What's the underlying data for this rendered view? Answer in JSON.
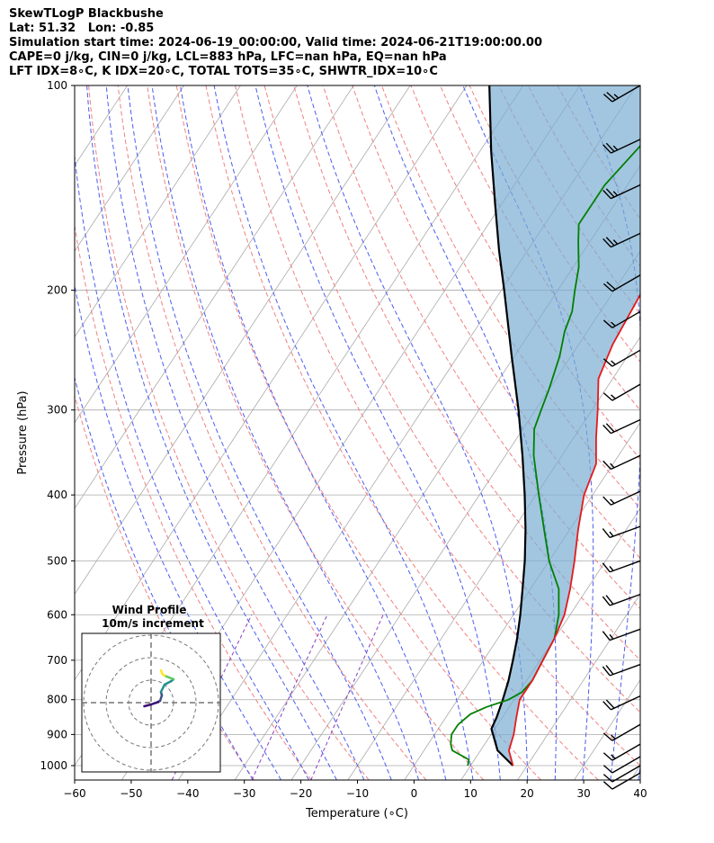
{
  "header": {
    "line1": "SkewTLogP Blackbushe",
    "line2": "Lat: 51.32   Lon: -0.85",
    "line3": "Simulation start time: 2024-06-19_00:00:00, Valid time: 2024-06-21T19:00:00.00",
    "line4": "CAPE=0 j/kg, CIN=0 j/kg, LCL=883 hPa, LFC=nan hPa, EQ=nan hPa",
    "line5": "LFT IDX=8∘C, K IDX=20∘C, TOTAL TOTS=35∘C, SHWTR_IDX=10∘C"
  },
  "colors": {
    "temperature": "#e41a1c",
    "dewpoint": "#008000",
    "parcel": "#000000",
    "shade": "#7aaed3",
    "dry_adiabat": "#f08080",
    "moist_adiabat": "#4a5df0",
    "isotherm": "#aaaaaa",
    "mixing_ratio": "#8a3fc0"
  },
  "chart_data": {
    "type": "line",
    "xlabel": "Temperature (∘C)",
    "ylabel": "Pressure (hPa)",
    "xlim": [
      -60,
      40
    ],
    "ylim": [
      1050,
      100
    ],
    "y_scale": "log",
    "x_ticks": [
      "−60",
      "−50",
      "−40",
      "−30",
      "−20",
      "−10",
      "0",
      "10",
      "20",
      "30",
      "40"
    ],
    "y_ticks": [
      "100",
      "200",
      "300",
      "400",
      "500",
      "600",
      "700",
      "800",
      "900",
      "1000"
    ],
    "y_tick_values": [
      100,
      200,
      300,
      400,
      500,
      600,
      700,
      800,
      900,
      1000
    ],
    "grid": true,
    "series": [
      {
        "kind": "temperature",
        "points": [
          [
            1000,
            17.5
          ],
          [
            950,
            15
          ],
          [
            900,
            14
          ],
          [
            850,
            12.5
          ],
          [
            800,
            11
          ],
          [
            750,
            11
          ],
          [
            700,
            10.5
          ],
          [
            650,
            10
          ],
          [
            600,
            9
          ],
          [
            550,
            7
          ],
          [
            500,
            4.5
          ],
          [
            450,
            1.5
          ],
          [
            400,
            -1.5
          ],
          [
            360,
            -3
          ],
          [
            330,
            -6
          ],
          [
            300,
            -9
          ],
          [
            270,
            -12.5
          ],
          [
            250,
            -13.5
          ],
          [
            240,
            -14
          ],
          [
            200,
            -15
          ],
          [
            178,
            -16
          ],
          [
            160,
            -13
          ],
          [
            150,
            -11
          ],
          [
            140,
            -10
          ],
          [
            130,
            -9
          ],
          [
            120,
            -8
          ],
          [
            110,
            -6
          ],
          [
            100,
            -6
          ]
        ]
      },
      {
        "kind": "dewpoint",
        "points": [
          [
            1000,
            9.5
          ],
          [
            980,
            9
          ],
          [
            950,
            5
          ],
          [
            930,
            4
          ],
          [
            900,
            3
          ],
          [
            870,
            3
          ],
          [
            840,
            4
          ],
          [
            820,
            6
          ],
          [
            800,
            9
          ],
          [
            780,
            10.5
          ],
          [
            750,
            11
          ],
          [
            700,
            10.5
          ],
          [
            650,
            10
          ],
          [
            600,
            8
          ],
          [
            550,
            5
          ],
          [
            500,
            0
          ],
          [
            450,
            -4.5
          ],
          [
            400,
            -9.5
          ],
          [
            350,
            -15
          ],
          [
            320,
            -18
          ],
          [
            300,
            -19
          ],
          [
            280,
            -20
          ],
          [
            250,
            -22
          ],
          [
            230,
            -24
          ],
          [
            215,
            -25
          ],
          [
            200,
            -27
          ],
          [
            185,
            -29
          ],
          [
            170,
            -32
          ],
          [
            160,
            -34
          ],
          [
            140,
            -34
          ],
          [
            120,
            -32
          ],
          [
            100,
            -30
          ]
        ]
      },
      {
        "kind": "parcel",
        "points": [
          [
            1000,
            17.5
          ],
          [
            950,
            13
          ],
          [
            883,
            9.4
          ],
          [
            850,
            9
          ],
          [
            800,
            8
          ],
          [
            750,
            6.8
          ],
          [
            700,
            5.2
          ],
          [
            650,
            3.4
          ],
          [
            600,
            1.2
          ],
          [
            550,
            -1.4
          ],
          [
            500,
            -4.3
          ],
          [
            450,
            -7.8
          ],
          [
            400,
            -12
          ],
          [
            350,
            -17
          ],
          [
            300,
            -23
          ],
          [
            250,
            -30.5
          ],
          [
            200,
            -39.5
          ],
          [
            175,
            -45
          ],
          [
            150,
            -51
          ],
          [
            125,
            -58
          ],
          [
            100,
            -66
          ]
        ]
      }
    ],
    "wind_barbs": [
      {
        "p": 100,
        "dir": 240,
        "kt": 25
      },
      {
        "p": 120,
        "dir": 245,
        "kt": 25
      },
      {
        "p": 140,
        "dir": 245,
        "kt": 25
      },
      {
        "p": 165,
        "dir": 245,
        "kt": 25
      },
      {
        "p": 190,
        "dir": 240,
        "kt": 20
      },
      {
        "p": 215,
        "dir": 240,
        "kt": 15
      },
      {
        "p": 245,
        "dir": 240,
        "kt": 15
      },
      {
        "p": 275,
        "dir": 240,
        "kt": 15
      },
      {
        "p": 310,
        "dir": 245,
        "kt": 20
      },
      {
        "p": 350,
        "dir": 245,
        "kt": 15
      },
      {
        "p": 395,
        "dir": 245,
        "kt": 15
      },
      {
        "p": 445,
        "dir": 250,
        "kt": 15
      },
      {
        "p": 500,
        "dir": 250,
        "kt": 15
      },
      {
        "p": 560,
        "dir": 250,
        "kt": 20
      },
      {
        "p": 630,
        "dir": 250,
        "kt": 15
      },
      {
        "p": 710,
        "dir": 250,
        "kt": 20
      },
      {
        "p": 790,
        "dir": 245,
        "kt": 20
      },
      {
        "p": 870,
        "dir": 240,
        "kt": 15
      },
      {
        "p": 930,
        "dir": 240,
        "kt": 15
      },
      {
        "p": 970,
        "dir": 240,
        "kt": 10
      },
      {
        "p": 1000,
        "dir": 240,
        "kt": 10
      },
      {
        "p": 1025,
        "dir": 240,
        "kt": 10
      }
    ],
    "inset": {
      "title": "Wind Profile",
      "subtitle": "10m/s increment",
      "hodograph": [
        [
          -1.5,
          -1
        ],
        [
          0,
          -0.5
        ],
        [
          1.2,
          0
        ],
        [
          2,
          0.5
        ],
        [
          2.4,
          2
        ],
        [
          2.2,
          3
        ],
        [
          3,
          5
        ],
        [
          4.5,
          6
        ],
        [
          5,
          6.5
        ],
        [
          4,
          7
        ],
        [
          3,
          7.5
        ],
        [
          2.5,
          8
        ],
        [
          2.2,
          9
        ]
      ]
    }
  }
}
